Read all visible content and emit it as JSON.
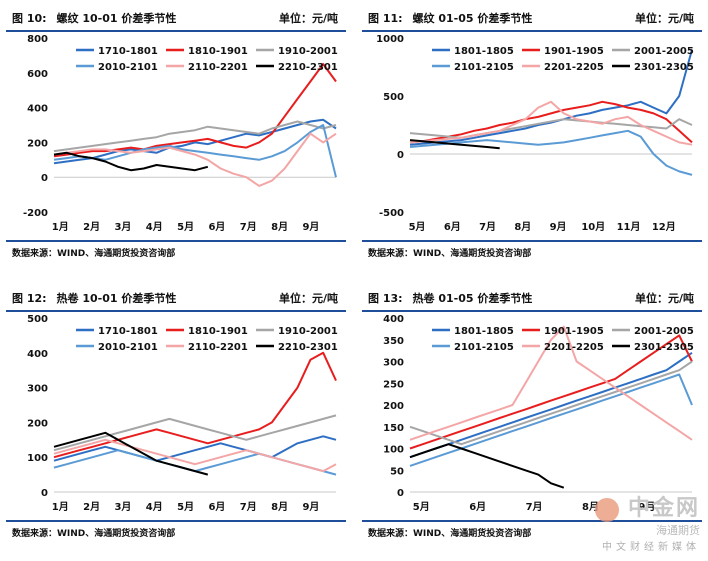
{
  "chart_data": [
    {
      "type": "line",
      "panel_no": "图 10:",
      "title": "螺纹 10-01 价差季节性",
      "unit": "单位：元/吨",
      "source": "数据来源：WIND、海通期货投资咨询部",
      "ylim": [
        -200,
        800
      ],
      "yticks": [
        -200,
        0,
        200,
        400,
        600,
        800
      ],
      "x_labels": [
        "1月",
        "2月",
        "3月",
        "4月",
        "5月",
        "6月",
        "7月",
        "8月",
        "9月"
      ],
      "legend_placement": "top",
      "colors": [
        "#2e6fc4",
        "#e81e1e",
        "#a6a6a6",
        "#5b9bd5",
        "#f4a6a6",
        "#000000"
      ],
      "series": [
        {
          "name": "1710-1801",
          "values": [
            80,
            90,
            100,
            110,
            130,
            150,
            160,
            150,
            140,
            170,
            180,
            200,
            190,
            210,
            230,
            250,
            240,
            260,
            280,
            300,
            320,
            330,
            280
          ]
        },
        {
          "name": "1810-1901",
          "values": [
            120,
            130,
            140,
            150,
            150,
            160,
            170,
            160,
            180,
            190,
            200,
            210,
            220,
            200,
            180,
            170,
            200,
            250,
            350,
            450,
            550,
            650,
            550
          ]
        },
        {
          "name": "1910-2001",
          "values": [
            150,
            160,
            170,
            180,
            190,
            200,
            210,
            220,
            230,
            250,
            260,
            270,
            290,
            280,
            270,
            260,
            250,
            280,
            300,
            320,
            300,
            280,
            300
          ]
        },
        {
          "name": "2010-2101",
          "values": [
            100,
            110,
            120,
            110,
            100,
            120,
            140,
            160,
            170,
            180,
            160,
            150,
            140,
            130,
            120,
            110,
            100,
            120,
            150,
            200,
            260,
            300,
            0
          ]
        },
        {
          "name": "2110-2201",
          "values": [
            130,
            140,
            150,
            160,
            160,
            150,
            140,
            150,
            160,
            170,
            150,
            130,
            100,
            50,
            20,
            0,
            -50,
            -20,
            50,
            150,
            250,
            200,
            250
          ]
        },
        {
          "name": "2210-2301",
          "values": [
            130,
            140,
            120,
            110,
            90,
            60,
            40,
            50,
            70,
            60,
            50,
            40,
            60
          ]
        }
      ]
    },
    {
      "type": "line",
      "panel_no": "图 11:",
      "title": "螺纹 01-05 价差季节性",
      "unit": "单位：元/吨",
      "source": "数据来源：WIND、海通期货投资咨询部",
      "ylim": [
        -500,
        1000
      ],
      "yticks": [
        -500,
        0,
        500,
        1000
      ],
      "x_labels": [
        "5月",
        "6月",
        "7月",
        "8月",
        "9月",
        "10月",
        "11月",
        "12月"
      ],
      "legend_placement": "top",
      "colors": [
        "#2e6fc4",
        "#e81e1e",
        "#a6a6a6",
        "#5b9bd5",
        "#f4a6a6",
        "#000000"
      ],
      "series": [
        {
          "name": "1801-1805",
          "values": [
            80,
            90,
            100,
            110,
            120,
            140,
            160,
            180,
            200,
            220,
            250,
            270,
            300,
            330,
            350,
            380,
            400,
            420,
            450,
            400,
            350,
            500,
            900
          ]
        },
        {
          "name": "1901-1905",
          "values": [
            100,
            110,
            130,
            150,
            170,
            200,
            220,
            250,
            270,
            300,
            320,
            350,
            380,
            400,
            420,
            450,
            430,
            400,
            380,
            350,
            300,
            200,
            100
          ]
        },
        {
          "name": "2001-2005",
          "values": [
            180,
            170,
            160,
            150,
            140,
            160,
            180,
            200,
            220,
            240,
            260,
            280,
            300,
            290,
            280,
            270,
            260,
            250,
            240,
            230,
            220,
            300,
            250
          ]
        },
        {
          "name": "2101-2105",
          "values": [
            60,
            70,
            80,
            90,
            100,
            110,
            120,
            110,
            100,
            90,
            80,
            90,
            100,
            120,
            140,
            160,
            180,
            200,
            150,
            0,
            -100,
            -150,
            -180
          ]
        },
        {
          "name": "2201-2205",
          "values": [
            100,
            110,
            120,
            130,
            140,
            160,
            180,
            200,
            250,
            300,
            400,
            450,
            350,
            300,
            280,
            260,
            300,
            320,
            250,
            200,
            150,
            100,
            80
          ]
        },
        {
          "name": "2301-2305",
          "values": [
            120,
            110,
            100,
            90,
            80,
            70,
            60,
            50
          ]
        }
      ]
    },
    {
      "type": "line",
      "panel_no": "图 12:",
      "title": "热卷 10-01 价差季节性",
      "unit": "单位：元/吨",
      "source": "数据来源：WIND、海通期货投资咨询部",
      "ylim": [
        0,
        500
      ],
      "yticks": [
        0,
        100,
        200,
        300,
        400,
        500
      ],
      "x_labels": [
        "1月",
        "2月",
        "3月",
        "4月",
        "5月",
        "6月",
        "7月",
        "8月",
        "9月"
      ],
      "legend_placement": "top",
      "colors": [
        "#2e6fc4",
        "#e81e1e",
        "#a6a6a6",
        "#5b9bd5",
        "#f4a6a6",
        "#000000"
      ],
      "series": [
        {
          "name": "1710-1801",
          "values": [
            90,
            100,
            110,
            120,
            130,
            120,
            110,
            100,
            90,
            100,
            110,
            120,
            130,
            140,
            130,
            120,
            110,
            100,
            120,
            140,
            150,
            160,
            150
          ]
        },
        {
          "name": "1810-1901",
          "values": [
            100,
            110,
            120,
            130,
            140,
            150,
            160,
            170,
            180,
            170,
            160,
            150,
            140,
            150,
            160,
            170,
            180,
            200,
            250,
            300,
            380,
            400,
            320
          ]
        },
        {
          "name": "1910-2001",
          "values": [
            120,
            130,
            140,
            150,
            160,
            170,
            180,
            190,
            200,
            210,
            200,
            190,
            180,
            170,
            160,
            150,
            160,
            170,
            180,
            190,
            200,
            210,
            220
          ]
        },
        {
          "name": "2010-2101",
          "values": [
            70,
            80,
            90,
            100,
            110,
            120,
            110,
            100,
            90,
            80,
            70,
            60,
            70,
            80,
            90,
            100,
            110,
            100,
            90,
            80,
            70,
            60,
            50
          ]
        },
        {
          "name": "2110-2201",
          "values": [
            110,
            120,
            130,
            140,
            150,
            140,
            130,
            120,
            110,
            100,
            90,
            80,
            90,
            100,
            110,
            120,
            110,
            100,
            90,
            80,
            70,
            60,
            80
          ]
        },
        {
          "name": "2210-2301",
          "values": [
            130,
            140,
            150,
            160,
            170,
            150,
            130,
            110,
            90,
            80,
            70,
            60,
            50
          ]
        }
      ]
    },
    {
      "type": "line",
      "panel_no": "图 13:",
      "title": "热卷 01-05 价差季节性",
      "unit": "单位：元/吨",
      "source": "数据来源：WIND、海通期货投资咨询部",
      "ylim": [
        0,
        400
      ],
      "yticks": [
        0,
        50,
        100,
        150,
        200,
        250,
        300,
        350,
        400
      ],
      "x_labels": [
        "5月",
        "6月",
        "7月",
        "8月",
        "9月"
      ],
      "legend_placement": "top",
      "colors": [
        "#2e6fc4",
        "#e81e1e",
        "#a6a6a6",
        "#5b9bd5",
        "#f4a6a6",
        "#000000"
      ],
      "series": [
        {
          "name": "1801-1805",
          "values": [
            80,
            90,
            100,
            110,
            120,
            130,
            140,
            150,
            160,
            170,
            180,
            190,
            200,
            210,
            220,
            230,
            240,
            250,
            260,
            270,
            280,
            300,
            320
          ]
        },
        {
          "name": "1901-1905",
          "values": [
            100,
            110,
            120,
            130,
            140,
            150,
            160,
            170,
            180,
            190,
            200,
            210,
            220,
            230,
            240,
            250,
            260,
            280,
            300,
            320,
            340,
            360,
            300
          ]
        },
        {
          "name": "2001-2005",
          "values": [
            150,
            140,
            130,
            120,
            110,
            120,
            130,
            140,
            150,
            160,
            170,
            180,
            190,
            200,
            210,
            220,
            230,
            240,
            250,
            260,
            270,
            280,
            300
          ]
        },
        {
          "name": "2101-2105",
          "values": [
            60,
            70,
            80,
            90,
            100,
            110,
            120,
            130,
            140,
            150,
            160,
            170,
            180,
            190,
            200,
            210,
            220,
            230,
            240,
            250,
            260,
            270,
            200
          ]
        },
        {
          "name": "2201-2205",
          "values": [
            120,
            130,
            140,
            150,
            160,
            170,
            180,
            190,
            200,
            250,
            300,
            350,
            380,
            300,
            280,
            260,
            240,
            220,
            200,
            180,
            160,
            140,
            120
          ]
        },
        {
          "name": "2301-2305",
          "values": [
            80,
            90,
            100,
            110,
            100,
            90,
            80,
            70,
            60,
            50,
            40,
            20,
            10
          ]
        }
      ]
    }
  ],
  "watermark": {
    "brand": "中金网",
    "sub": "中文财经新媒体",
    "mark": "海通期货"
  }
}
